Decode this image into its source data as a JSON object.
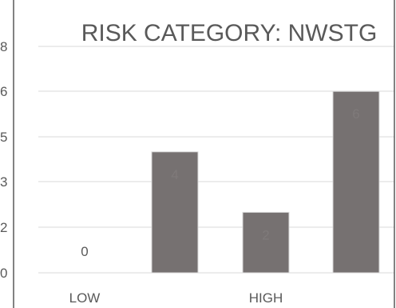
{
  "chart_data": {
    "type": "bar",
    "title": "RISK CATEGORY: NWSTG",
    "xlabel": "",
    "ylabel": "",
    "categories": [
      "LOW",
      "",
      "HIGH",
      ""
    ],
    "values": [
      0,
      4,
      2,
      6
    ],
    "data_labels": [
      "0",
      "4",
      "2",
      "6"
    ],
    "y_tick_labels": [
      "0",
      "2",
      "3",
      "5",
      "6",
      "8"
    ],
    "ylim": [
      0,
      6
    ],
    "grid": true,
    "legend": "none",
    "colors": {
      "bar": "#767171",
      "data_label_inside": "#7f7a7a",
      "data_label_outside": "#595959"
    }
  }
}
